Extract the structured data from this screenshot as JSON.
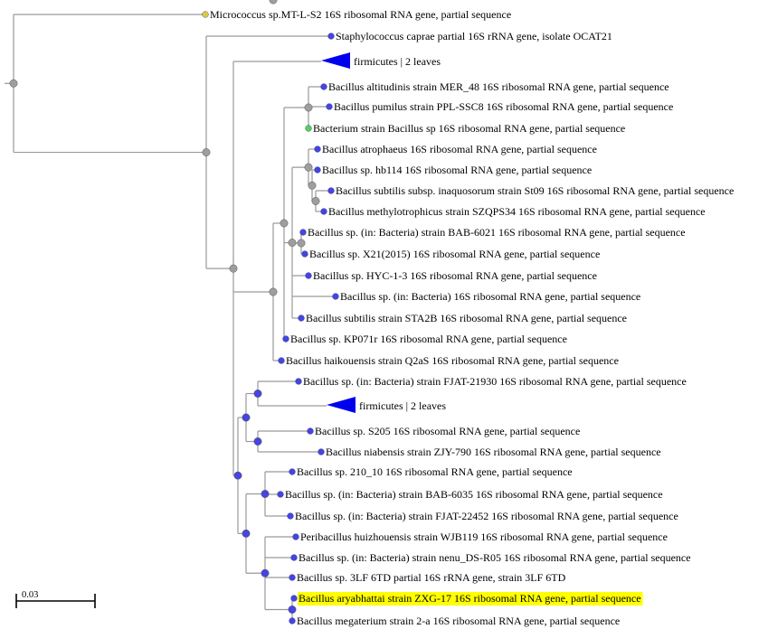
{
  "scale_bar": {
    "label": "0.03"
  },
  "tips": [
    {
      "id": "t1",
      "label": "Micrococcus sp.MT-L-S2 16S ribosomal RNA gene, partial sequence",
      "color": "#d9cd3a"
    },
    {
      "id": "t2",
      "label": "Staphylococcus caprae partial 16S rRNA gene, isolate OCAT21",
      "color": "#4545e0"
    },
    {
      "id": "t3",
      "label": "firmicutes | 2 leaves",
      "collapsed": true,
      "color": "#0000ee"
    },
    {
      "id": "t4",
      "label": "Bacillus altitudinis strain MER_48 16S ribosomal RNA gene, partial sequence",
      "color": "#4545e0"
    },
    {
      "id": "t5",
      "label": "Bacillus pumilus strain PPL-SSC8 16S ribosomal RNA gene, partial sequence",
      "color": "#4545e0"
    },
    {
      "id": "t6",
      "label": "Bacterium strain Bacillus sp 16S ribosomal RNA gene, partial sequence",
      "color": "#52d552"
    },
    {
      "id": "t7",
      "label": "Bacillus atrophaeus 16S ribosomal RNA gene, partial sequence",
      "color": "#4545e0"
    },
    {
      "id": "t8",
      "label": "Bacillus sp. hb114 16S ribosomal RNA gene, partial sequence",
      "color": "#4545e0"
    },
    {
      "id": "t9",
      "label": "Bacillus subtilis subsp. inaquosorum strain St09 16S ribosomal RNA gene, partial sequence",
      "color": "#4545e0"
    },
    {
      "id": "t10",
      "label": "Bacillus methylotrophicus strain SZQPS34 16S ribosomal RNA gene, partial sequence",
      "color": "#4545e0"
    },
    {
      "id": "t11",
      "label": "Bacillus sp. (in: Bacteria) strain BAB-6021 16S ribosomal RNA gene, partial sequence",
      "color": "#4545e0"
    },
    {
      "id": "t12",
      "label": "Bacillus sp. X21(2015) 16S ribosomal RNA gene, partial sequence",
      "color": "#4545e0"
    },
    {
      "id": "t13",
      "label": "Bacillus sp. HYC-1-3 16S ribosomal RNA gene, partial sequence",
      "color": "#4545e0"
    },
    {
      "id": "t14",
      "label": "Bacillus sp. (in: Bacteria) 16S ribosomal RNA gene, partial sequence",
      "color": "#4545e0"
    },
    {
      "id": "t15",
      "label": "Bacillus subtilis strain STA2B 16S ribosomal RNA gene, partial sequence",
      "color": "#4545e0"
    },
    {
      "id": "t16",
      "label": "Bacillus sp. KP071r 16S ribosomal RNA gene, partial sequence",
      "color": "#4545e0"
    },
    {
      "id": "t17",
      "label": "Bacillus haikouensis strain Q2aS 16S ribosomal RNA gene, partial sequence",
      "color": "#4545e0"
    },
    {
      "id": "t18",
      "label": "Bacillus sp. (in: Bacteria) strain FJAT-21930 16S ribosomal RNA gene, partial sequence",
      "color": "#4545e0"
    },
    {
      "id": "t19",
      "label": "firmicutes | 2 leaves",
      "collapsed": true,
      "color": "#0000ee"
    },
    {
      "id": "t20",
      "label": "Bacillus sp. S205 16S ribosomal RNA gene, partial sequence",
      "color": "#4545e0"
    },
    {
      "id": "t21",
      "label": "Bacillus niabensis strain ZJY-790 16S ribosomal RNA gene, partial sequence",
      "color": "#4545e0"
    },
    {
      "id": "t22",
      "label": "Bacillus sp. 210_10 16S ribosomal RNA gene, partial sequence",
      "color": "#4545e0"
    },
    {
      "id": "t23",
      "label": "Bacillus sp. (in: Bacteria) strain BAB-6035 16S ribosomal RNA gene, partial sequence",
      "color": "#4545e0"
    },
    {
      "id": "t24",
      "label": "Bacillus sp. (in: Bacteria) strain FJAT-22452 16S ribosomal RNA gene, partial sequence",
      "color": "#4545e0"
    },
    {
      "id": "t25",
      "label": "Peribacillus huizhouensis strain WJB119 16S ribosomal RNA gene, partial sequence",
      "color": "#4545e0"
    },
    {
      "id": "t26",
      "label": "Bacillus sp. (in: Bacteria) strain nenu_DS-R05 16S ribosomal RNA gene, partial sequence",
      "color": "#4545e0"
    },
    {
      "id": "t27",
      "label": "Bacillus sp. 3LF 6TD partial 16S rRNA gene, strain 3LF 6TD",
      "color": "#4545e0"
    },
    {
      "id": "t28",
      "label": "Bacillus aryabhattai strain ZXG-17 16S ribosomal RNA gene, partial sequence",
      "color": "#4545e0",
      "highlighted": true,
      "highlight_color": "#ffff00"
    },
    {
      "id": "t29",
      "label": "Bacillus megaterium strain 2-a 16S ribosomal RNA gene, partial sequence",
      "color": "#4545e0"
    }
  ],
  "colors": {
    "branch": "#9a9a9a",
    "internal_node": "#9e9e9e",
    "tip_node": "#4545e0",
    "collapsed_clade": "#0000ee",
    "highlight": "#ffff00",
    "scale_bar": "#000000"
  }
}
